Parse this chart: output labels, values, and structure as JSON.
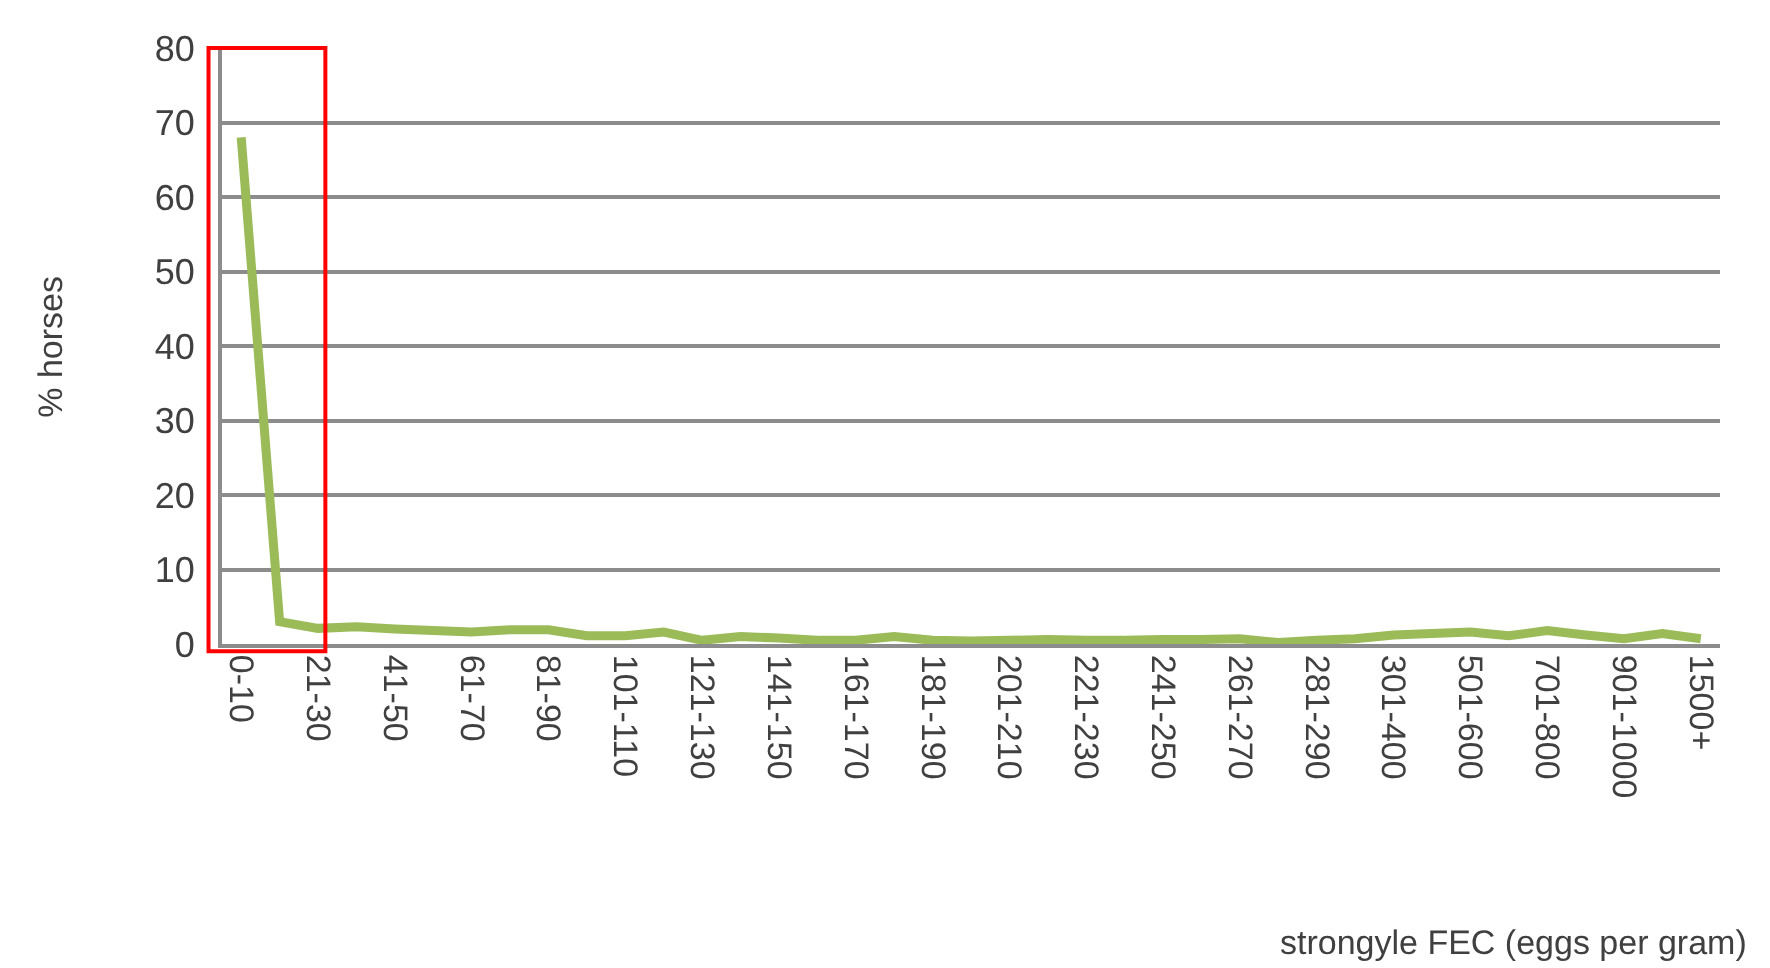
{
  "chart_data": {
    "type": "line",
    "xlabel": "strongyle FEC (eggs per gram)",
    "ylabel": "% horses",
    "categories": [
      "0-10",
      null,
      "21-30",
      null,
      "41-50",
      null,
      "61-70",
      null,
      "81-90",
      null,
      "101-110",
      null,
      "121-130",
      null,
      "141-150",
      null,
      "161-170",
      null,
      "181-190",
      null,
      "201-210",
      null,
      "221-230",
      null,
      "241-250",
      null,
      "261-270",
      null,
      "281-290",
      null,
      "301-400",
      null,
      "501-600",
      null,
      "701-800",
      null,
      "901-1000",
      null,
      "1500+"
    ],
    "series": [
      {
        "color": "#9bbb59",
        "values": [
          68,
          3.0,
          2.1,
          2.3,
          2.0,
          1.8,
          1.6,
          1.9,
          1.9,
          1.1,
          1.1,
          1.6,
          0.5,
          1.0,
          0.8,
          0.5,
          0.5,
          1.0,
          0.5,
          0.4,
          0.5,
          0.6,
          0.5,
          0.5,
          0.6,
          0.6,
          0.7,
          0.2,
          0.5,
          0.7,
          1.2,
          1.4,
          1.6,
          1.1,
          1.8,
          1.2,
          0.7,
          1.4,
          0.7
        ]
      }
    ],
    "ylim": [
      0,
      80
    ],
    "yticks": [
      0,
      10,
      20,
      30,
      40,
      50,
      60,
      70,
      80
    ],
    "grid": "y",
    "marker": "none",
    "line_style": "solid"
  }
}
